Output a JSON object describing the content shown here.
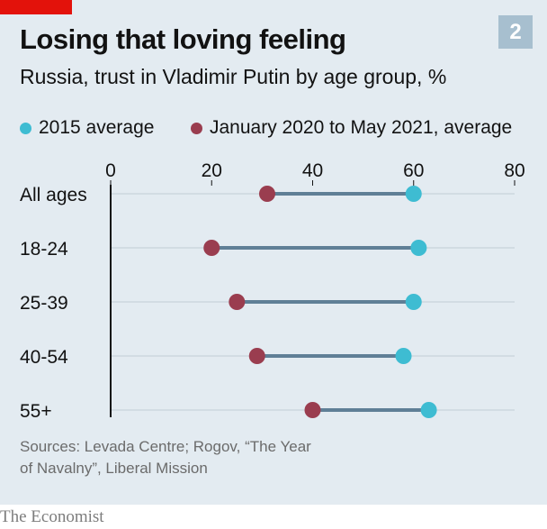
{
  "header": {
    "badge": "2",
    "title": "Losing that loving feeling",
    "subtitle": "Russia, trust in Vladimir Putin by age group, %"
  },
  "colors": {
    "panel_bg": "#e3ebf1",
    "accent_red": "#e3120b",
    "series_2015": "#3ebcd2",
    "series_2020": "#9a3d4f",
    "connector": "#5f7f96",
    "gridline": "#c8d3db"
  },
  "chart_data": {
    "type": "dumbbell",
    "title": "Losing that loving feeling",
    "subtitle": "Russia, trust in Vladimir Putin by age group, %",
    "categories": [
      "All ages",
      "18-24",
      "25-39",
      "40-54",
      "55+"
    ],
    "series": [
      {
        "name": "2015 average",
        "values": [
          60,
          61,
          60,
          58,
          63
        ]
      },
      {
        "name": "January 2020 to May 2021, average",
        "values": [
          31,
          20,
          25,
          29,
          40
        ]
      }
    ],
    "xticks": [
      0,
      20,
      40,
      60,
      80
    ],
    "xlim": [
      0,
      80
    ],
    "grid": true,
    "legend_position": "top"
  },
  "footer": {
    "source_line1": "Sources: Levada Centre; Rogov, “The Year",
    "source_line2": "of Navalny”, Liberal Mission",
    "brand": "The Economist"
  }
}
